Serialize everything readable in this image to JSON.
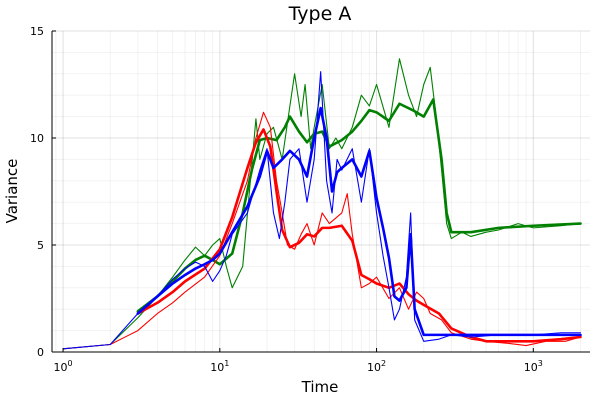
{
  "chart_data": {
    "type": "line",
    "title": "Type A",
    "xlabel": "Time",
    "ylabel": "Variance",
    "x_scale": "log10",
    "xlim": [
      0.85,
      2300
    ],
    "ylim": [
      0,
      15
    ],
    "yticks": [
      0,
      5,
      10,
      15
    ],
    "xticks": [
      {
        "value": 1,
        "base": "10",
        "exp": "0"
      },
      {
        "value": 10,
        "base": "10",
        "exp": "1"
      },
      {
        "value": 100,
        "base": "10",
        "exp": "2"
      },
      {
        "value": 1000,
        "base": "10",
        "exp": "3"
      }
    ],
    "grid": true,
    "legend": "none",
    "series": [
      {
        "color": "#008000",
        "style": "thin",
        "points": [
          [
            1,
            0.15
          ],
          [
            2,
            0.35
          ],
          [
            3,
            1.6
          ],
          [
            4,
            2.6
          ],
          [
            5,
            3.5
          ],
          [
            6,
            4.3
          ],
          [
            7,
            4.9
          ],
          [
            8,
            4.5
          ],
          [
            9,
            5.0
          ],
          [
            10,
            5.3
          ],
          [
            11,
            4.0
          ],
          [
            12,
            3.0
          ],
          [
            14,
            4.0
          ],
          [
            17,
            10.9
          ],
          [
            18,
            9.0
          ],
          [
            20,
            10.2
          ],
          [
            22,
            10.5
          ],
          [
            25,
            9.0
          ],
          [
            28,
            11.5
          ],
          [
            30,
            13.0
          ],
          [
            33,
            11.0
          ],
          [
            35,
            12.5
          ],
          [
            38,
            9.5
          ],
          [
            40,
            10.5
          ],
          [
            45,
            12.5
          ],
          [
            50,
            9.5
          ],
          [
            55,
            10.0
          ],
          [
            60,
            9.5
          ],
          [
            70,
            10.5
          ],
          [
            80,
            12.0
          ],
          [
            90,
            11.5
          ],
          [
            100,
            12.5
          ],
          [
            120,
            10.5
          ],
          [
            140,
            13.7
          ],
          [
            160,
            12.0
          ],
          [
            180,
            11.0
          ],
          [
            200,
            12.5
          ],
          [
            220,
            13.3
          ],
          [
            240,
            11.0
          ],
          [
            260,
            8.5
          ],
          [
            280,
            6.0
          ],
          [
            300,
            5.3
          ],
          [
            350,
            5.6
          ],
          [
            400,
            5.4
          ],
          [
            500,
            5.6
          ],
          [
            600,
            5.7
          ],
          [
            800,
            6.0
          ],
          [
            1000,
            5.8
          ],
          [
            1500,
            5.9
          ],
          [
            2000,
            6.0
          ]
        ]
      },
      {
        "color": "#008000",
        "style": "thick",
        "points": [
          [
            3,
            1.9
          ],
          [
            4,
            2.6
          ],
          [
            5,
            3.3
          ],
          [
            6,
            3.9
          ],
          [
            7,
            4.3
          ],
          [
            8,
            4.5
          ],
          [
            9,
            4.3
          ],
          [
            10,
            4.1
          ],
          [
            12,
            4.6
          ],
          [
            14,
            6.5
          ],
          [
            16,
            8.5
          ],
          [
            18,
            9.9
          ],
          [
            20,
            10.0
          ],
          [
            23,
            9.9
          ],
          [
            26,
            10.5
          ],
          [
            28,
            11.0
          ],
          [
            32,
            10.3
          ],
          [
            36,
            9.8
          ],
          [
            40,
            10.2
          ],
          [
            45,
            10.3
          ],
          [
            50,
            9.6
          ],
          [
            60,
            9.9
          ],
          [
            70,
            10.3
          ],
          [
            80,
            10.8
          ],
          [
            90,
            11.3
          ],
          [
            100,
            11.2
          ],
          [
            120,
            10.8
          ],
          [
            140,
            11.6
          ],
          [
            170,
            11.3
          ],
          [
            200,
            11.0
          ],
          [
            230,
            11.8
          ],
          [
            260,
            9.0
          ],
          [
            280,
            6.5
          ],
          [
            300,
            5.6
          ],
          [
            400,
            5.6
          ],
          [
            600,
            5.8
          ],
          [
            1000,
            5.9
          ],
          [
            2000,
            6.0
          ]
        ]
      },
      {
        "color": "#ff0000",
        "style": "thin",
        "points": [
          [
            1,
            0.15
          ],
          [
            2,
            0.35
          ],
          [
            3,
            1.0
          ],
          [
            4,
            1.8
          ],
          [
            5,
            2.3
          ],
          [
            6,
            2.8
          ],
          [
            8,
            3.5
          ],
          [
            10,
            4.5
          ],
          [
            12,
            6.0
          ],
          [
            15,
            8.0
          ],
          [
            17,
            10.0
          ],
          [
            19,
            11.2
          ],
          [
            21,
            10.5
          ],
          [
            23,
            8.0
          ],
          [
            25,
            6.5
          ],
          [
            27,
            5.0
          ],
          [
            30,
            4.8
          ],
          [
            33,
            5.5
          ],
          [
            36,
            6.0
          ],
          [
            40,
            5.0
          ],
          [
            45,
            6.5
          ],
          [
            50,
            6.0
          ],
          [
            60,
            6.5
          ],
          [
            65,
            7.4
          ],
          [
            70,
            5.5
          ],
          [
            80,
            3.0
          ],
          [
            90,
            3.2
          ],
          [
            100,
            3.5
          ],
          [
            120,
            2.5
          ],
          [
            140,
            3.0
          ],
          [
            160,
            2.0
          ],
          [
            180,
            2.8
          ],
          [
            200,
            2.5
          ],
          [
            220,
            1.8
          ],
          [
            260,
            1.5
          ],
          [
            300,
            0.9
          ],
          [
            400,
            0.6
          ],
          [
            500,
            0.5
          ],
          [
            700,
            0.4
          ],
          [
            900,
            0.3
          ],
          [
            1200,
            0.5
          ],
          [
            1600,
            0.5
          ],
          [
            2000,
            0.7
          ]
        ]
      },
      {
        "color": "#ff0000",
        "style": "thick",
        "points": [
          [
            3,
            1.8
          ],
          [
            4,
            2.3
          ],
          [
            5,
            2.8
          ],
          [
            6,
            3.3
          ],
          [
            8,
            3.9
          ],
          [
            10,
            4.8
          ],
          [
            12,
            6.3
          ],
          [
            15,
            8.6
          ],
          [
            17,
            9.8
          ],
          [
            19,
            10.4
          ],
          [
            21,
            9.6
          ],
          [
            23,
            7.5
          ],
          [
            25,
            5.7
          ],
          [
            28,
            4.9
          ],
          [
            32,
            5.1
          ],
          [
            36,
            5.5
          ],
          [
            40,
            5.4
          ],
          [
            45,
            5.8
          ],
          [
            50,
            5.8
          ],
          [
            60,
            5.9
          ],
          [
            70,
            5.2
          ],
          [
            80,
            3.6
          ],
          [
            90,
            3.4
          ],
          [
            100,
            3.2
          ],
          [
            120,
            3.0
          ],
          [
            140,
            3.2
          ],
          [
            160,
            2.7
          ],
          [
            180,
            2.4
          ],
          [
            200,
            2.2
          ],
          [
            250,
            1.8
          ],
          [
            300,
            1.1
          ],
          [
            400,
            0.7
          ],
          [
            500,
            0.5
          ],
          [
            700,
            0.5
          ],
          [
            1000,
            0.5
          ],
          [
            1500,
            0.6
          ],
          [
            2000,
            0.7
          ]
        ]
      },
      {
        "color": "#0000ff",
        "style": "thin",
        "points": [
          [
            1,
            0.15
          ],
          [
            2,
            0.35
          ],
          [
            3,
            1.8
          ],
          [
            4,
            2.6
          ],
          [
            5,
            3.4
          ],
          [
            6,
            3.9
          ],
          [
            7,
            4.2
          ],
          [
            8,
            4.0
          ],
          [
            9,
            3.3
          ],
          [
            10,
            3.8
          ],
          [
            11,
            4.5
          ],
          [
            12,
            5.5
          ],
          [
            15,
            6.5
          ],
          [
            18,
            8.5
          ],
          [
            20,
            9.5
          ],
          [
            22,
            6.5
          ],
          [
            24,
            5.3
          ],
          [
            26,
            7.0
          ],
          [
            28,
            9.0
          ],
          [
            32,
            9.5
          ],
          [
            36,
            7.0
          ],
          [
            40,
            9.0
          ],
          [
            44,
            13.1
          ],
          [
            48,
            8.0
          ],
          [
            52,
            6.5
          ],
          [
            56,
            9.0
          ],
          [
            60,
            8.5
          ],
          [
            70,
            9.5
          ],
          [
            80,
            7.0
          ],
          [
            90,
            9.5
          ],
          [
            100,
            6.5
          ],
          [
            110,
            4.5
          ],
          [
            120,
            3.0
          ],
          [
            130,
            1.5
          ],
          [
            140,
            2.0
          ],
          [
            155,
            3.5
          ],
          [
            165,
            6.5
          ],
          [
            175,
            1.5
          ],
          [
            200,
            0.5
          ],
          [
            250,
            0.6
          ],
          [
            300,
            0.8
          ],
          [
            400,
            0.7
          ],
          [
            600,
            0.8
          ],
          [
            1000,
            0.8
          ],
          [
            1500,
            0.9
          ],
          [
            2000,
            0.9
          ]
        ]
      },
      {
        "color": "#0000ff",
        "style": "thick",
        "points": [
          [
            3,
            1.8
          ],
          [
            4,
            2.6
          ],
          [
            5,
            3.2
          ],
          [
            6,
            3.6
          ],
          [
            7,
            3.9
          ],
          [
            8,
            4.1
          ],
          [
            9,
            4.3
          ],
          [
            10,
            4.6
          ],
          [
            12,
            5.6
          ],
          [
            15,
            6.8
          ],
          [
            18,
            8.2
          ],
          [
            20,
            9.4
          ],
          [
            22,
            8.6
          ],
          [
            25,
            9.0
          ],
          [
            28,
            9.4
          ],
          [
            32,
            9.0
          ],
          [
            36,
            8.2
          ],
          [
            40,
            10.0
          ],
          [
            44,
            11.4
          ],
          [
            48,
            10.0
          ],
          [
            52,
            7.5
          ],
          [
            56,
            8.4
          ],
          [
            60,
            8.6
          ],
          [
            70,
            9.0
          ],
          [
            80,
            8.2
          ],
          [
            90,
            9.4
          ],
          [
            100,
            7.2
          ],
          [
            110,
            5.8
          ],
          [
            120,
            4.4
          ],
          [
            130,
            2.6
          ],
          [
            140,
            2.4
          ],
          [
            155,
            3.0
          ],
          [
            165,
            5.5
          ],
          [
            175,
            2.0
          ],
          [
            200,
            0.8
          ],
          [
            300,
            0.8
          ],
          [
            500,
            0.8
          ],
          [
            1000,
            0.8
          ],
          [
            2000,
            0.8
          ]
        ]
      }
    ]
  }
}
